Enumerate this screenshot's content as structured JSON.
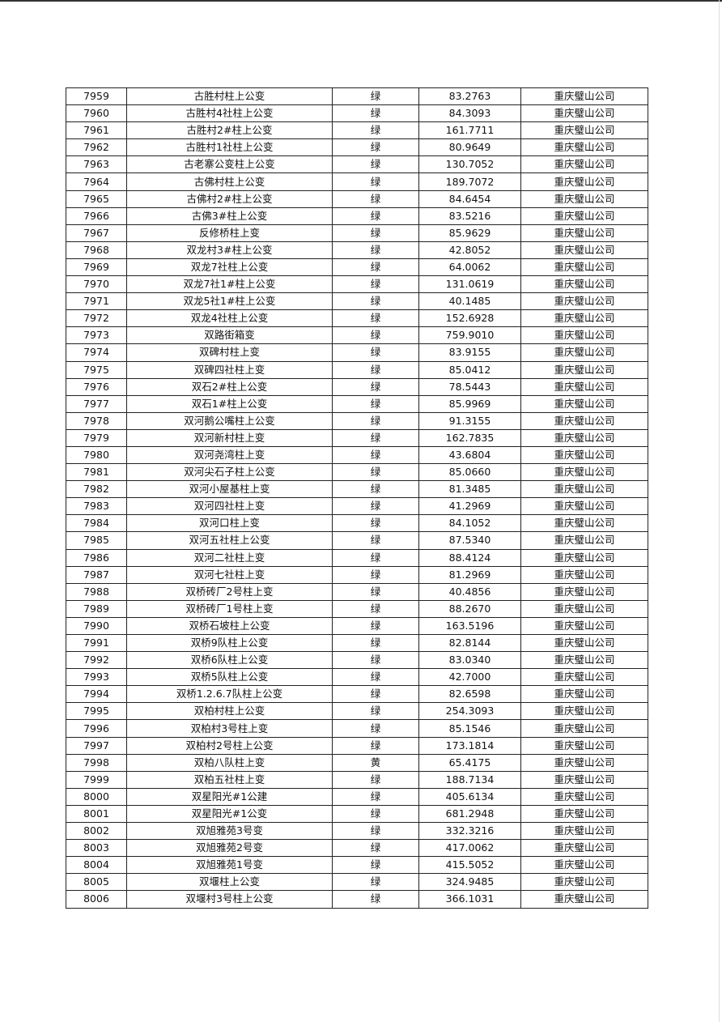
{
  "table": {
    "rows": [
      [
        "7959",
        "古胜村柱上公变",
        "绿",
        "83.2763",
        "重庆璧山公司"
      ],
      [
        "7960",
        "古胜村4社柱上公变",
        "绿",
        "84.3093",
        "重庆璧山公司"
      ],
      [
        "7961",
        "古胜村2#柱上公变",
        "绿",
        "161.7711",
        "重庆璧山公司"
      ],
      [
        "7962",
        "古胜村1社柱上公变",
        "绿",
        "80.9649",
        "重庆璧山公司"
      ],
      [
        "7963",
        "古老寨公变柱上公变",
        "绿",
        "130.7052",
        "重庆璧山公司"
      ],
      [
        "7964",
        "古佛村柱上公变",
        "绿",
        "189.7072",
        "重庆璧山公司"
      ],
      [
        "7965",
        "古佛村2#柱上公变",
        "绿",
        "84.6454",
        "重庆璧山公司"
      ],
      [
        "7966",
        "古佛3#柱上公变",
        "绿",
        "83.5216",
        "重庆璧山公司"
      ],
      [
        "7967",
        "反修桥柱上变",
        "绿",
        "85.9629",
        "重庆璧山公司"
      ],
      [
        "7968",
        "双龙村3#柱上公变",
        "绿",
        "42.8052",
        "重庆璧山公司"
      ],
      [
        "7969",
        "双龙7社柱上公变",
        "绿",
        "64.0062",
        "重庆璧山公司"
      ],
      [
        "7970",
        "双龙7社1#柱上公变",
        "绿",
        "131.0619",
        "重庆璧山公司"
      ],
      [
        "7971",
        "双龙5社1#柱上公变",
        "绿",
        "40.1485",
        "重庆璧山公司"
      ],
      [
        "7972",
        "双龙4社柱上公变",
        "绿",
        "152.6928",
        "重庆璧山公司"
      ],
      [
        "7973",
        "双路街箱变",
        "绿",
        "759.9010",
        "重庆璧山公司"
      ],
      [
        "7974",
        "双碑村柱上变",
        "绿",
        "83.9155",
        "重庆璧山公司"
      ],
      [
        "7975",
        "双碑四社柱上变",
        "绿",
        "85.0412",
        "重庆璧山公司"
      ],
      [
        "7976",
        "双石2#柱上公变",
        "绿",
        "78.5443",
        "重庆璧山公司"
      ],
      [
        "7977",
        "双石1#柱上公变",
        "绿",
        "85.9969",
        "重庆璧山公司"
      ],
      [
        "7978",
        "双河鹅公嘴柱上公变",
        "绿",
        "91.3155",
        "重庆璧山公司"
      ],
      [
        "7979",
        "双河新村柱上变",
        "绿",
        "162.7835",
        "重庆璧山公司"
      ],
      [
        "7980",
        "双河尧湾柱上变",
        "绿",
        "43.6804",
        "重庆璧山公司"
      ],
      [
        "7981",
        "双河尖石子柱上公变",
        "绿",
        "85.0660",
        "重庆璧山公司"
      ],
      [
        "7982",
        "双河小屋基柱上变",
        "绿",
        "81.3485",
        "重庆璧山公司"
      ],
      [
        "7983",
        "双河四社柱上变",
        "绿",
        "41.2969",
        "重庆璧山公司"
      ],
      [
        "7984",
        "双河口柱上变",
        "绿",
        "84.1052",
        "重庆璧山公司"
      ],
      [
        "7985",
        "双河五社柱上公变",
        "绿",
        "87.5340",
        "重庆璧山公司"
      ],
      [
        "7986",
        "双河二社柱上变",
        "绿",
        "88.4124",
        "重庆璧山公司"
      ],
      [
        "7987",
        "双河七社柱上变",
        "绿",
        "81.2969",
        "重庆璧山公司"
      ],
      [
        "7988",
        "双桥砖厂2号柱上变",
        "绿",
        "40.4856",
        "重庆璧山公司"
      ],
      [
        "7989",
        "双桥砖厂1号柱上变",
        "绿",
        "88.2670",
        "重庆璧山公司"
      ],
      [
        "7990",
        "双桥石坡柱上公变",
        "绿",
        "163.5196",
        "重庆璧山公司"
      ],
      [
        "7991",
        "双桥9队柱上公变",
        "绿",
        "82.8144",
        "重庆璧山公司"
      ],
      [
        "7992",
        "双桥6队柱上公变",
        "绿",
        "83.0340",
        "重庆璧山公司"
      ],
      [
        "7993",
        "双桥5队柱上公变",
        "绿",
        "42.7000",
        "重庆璧山公司"
      ],
      [
        "7994",
        "双桥1.2.6.7队柱上公变",
        "绿",
        "82.6598",
        "重庆璧山公司"
      ],
      [
        "7995",
        "双柏村柱上公变",
        "绿",
        "254.3093",
        "重庆璧山公司"
      ],
      [
        "7996",
        "双柏村3号柱上变",
        "绿",
        "85.1546",
        "重庆璧山公司"
      ],
      [
        "7997",
        "双柏村2号柱上公变",
        "绿",
        "173.1814",
        "重庆璧山公司"
      ],
      [
        "7998",
        "双柏八队柱上变",
        "黄",
        "65.4175",
        "重庆璧山公司"
      ],
      [
        "7999",
        "双柏五社柱上变",
        "绿",
        "188.7134",
        "重庆璧山公司"
      ],
      [
        "8000",
        "双星阳光#1公建",
        "绿",
        "405.6134",
        "重庆璧山公司"
      ],
      [
        "8001",
        "双星阳光#1公变",
        "绿",
        "681.2948",
        "重庆璧山公司"
      ],
      [
        "8002",
        "双旭雅苑3号变",
        "绿",
        "332.3216",
        "重庆璧山公司"
      ],
      [
        "8003",
        "双旭雅苑2号变",
        "绿",
        "417.0062",
        "重庆璧山公司"
      ],
      [
        "8004",
        "双旭雅苑1号变",
        "绿",
        "415.5052",
        "重庆璧山公司"
      ],
      [
        "8005",
        "双堰柱上公变",
        "绿",
        "324.9485",
        "重庆璧山公司"
      ],
      [
        "8006",
        "双堰村3号柱上公变",
        "绿",
        "366.1031",
        "重庆璧山公司"
      ]
    ]
  }
}
